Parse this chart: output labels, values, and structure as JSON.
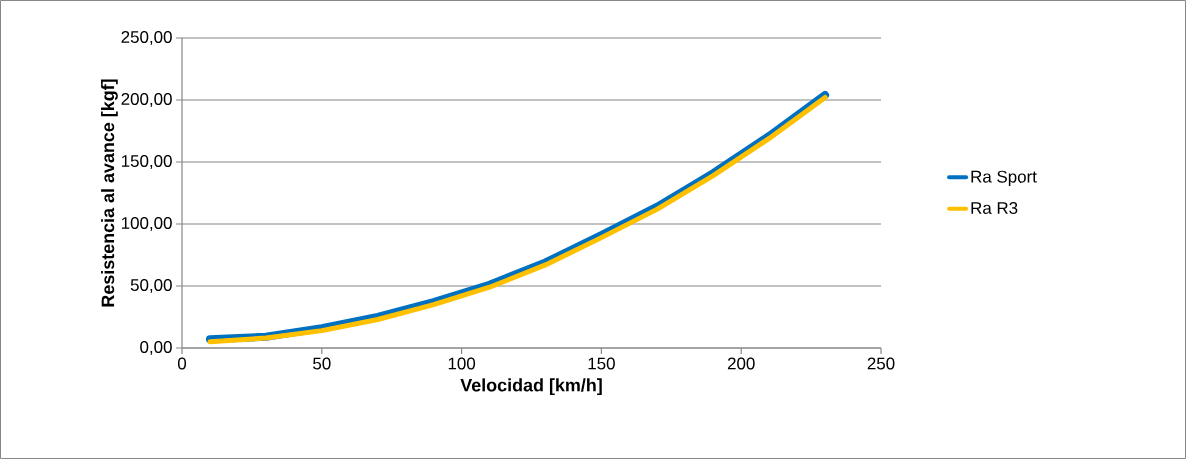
{
  "chart_data": {
    "type": "line",
    "xlabel": "Velocidad [km/h]",
    "ylabel": "Resistencia al avance [kgf]",
    "x": [
      10,
      30,
      50,
      70,
      90,
      110,
      130,
      150,
      170,
      190,
      210,
      230
    ],
    "series": [
      {
        "name": "Ra Sport",
        "color": "#0070c0",
        "values": [
          7,
          9,
          16,
          25,
          37,
          51,
          69,
          91,
          114,
          141,
          171,
          204
        ]
      },
      {
        "name": "Ra R3",
        "color": "#ffc000",
        "values": [
          5,
          8,
          14,
          23,
          35,
          49,
          67,
          89,
          112,
          139,
          169,
          202
        ]
      }
    ],
    "xlim": [
      0,
      250
    ],
    "xticks": [
      0,
      50,
      100,
      150,
      200,
      250
    ],
    "ylim": [
      0,
      250
    ],
    "yticks": [
      {
        "value": 0,
        "label": "0,00"
      },
      {
        "value": 50,
        "label": "50,00"
      },
      {
        "value": 100,
        "label": "100,00"
      },
      {
        "value": 150,
        "label": "150,00"
      },
      {
        "value": 200,
        "label": "200,00"
      },
      {
        "value": 250,
        "label": "250,00"
      }
    ],
    "grid": "y",
    "legend": "right",
    "marker": "none",
    "line_style": "solid"
  }
}
